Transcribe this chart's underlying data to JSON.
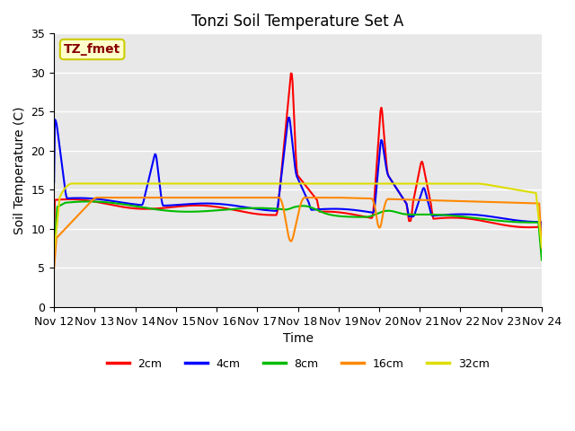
{
  "title": "Tonzi Soil Temperature Set A",
  "xlabel": "Time",
  "ylabel": "Soil Temperature (C)",
  "annotation": "TZ_fmet",
  "annotation_bg": "#ffffcc",
  "annotation_border": "#cccc00",
  "annotation_color": "#880000",
  "ylim": [
    0,
    35
  ],
  "yticks": [
    0,
    5,
    10,
    15,
    20,
    25,
    30,
    35
  ],
  "xtick_labels": [
    "Nov 12",
    "Nov 13",
    "Nov 14",
    "Nov 15",
    "Nov 16",
    "Nov 17",
    "Nov 18",
    "Nov 19",
    "Nov 20",
    "Nov 21",
    "Nov 22",
    "Nov 23",
    "Nov 24"
  ],
  "legend_labels": [
    "2cm",
    "4cm",
    "8cm",
    "16cm",
    "32cm"
  ],
  "legend_colors": [
    "#ff0000",
    "#0000ff",
    "#00bb00",
    "#ff8800",
    "#dddd00"
  ],
  "line_width": 1.5,
  "bg_color": "#e8e8e8",
  "grid_color": "#ffffff",
  "title_fontsize": 12,
  "tick_fontsize": 9,
  "label_fontsize": 10
}
